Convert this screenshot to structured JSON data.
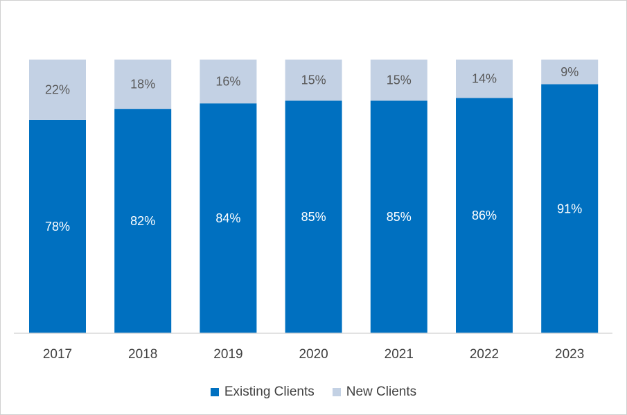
{
  "chart_data": {
    "type": "bar",
    "stacked": true,
    "percent_stacked": true,
    "categories": [
      "2017",
      "2018",
      "2019",
      "2020",
      "2021",
      "2022",
      "2023"
    ],
    "series": [
      {
        "name": "Existing Clients",
        "color": "#0070c0",
        "values": [
          78,
          82,
          84,
          85,
          85,
          86,
          91
        ],
        "labels": [
          "78%",
          "82%",
          "84%",
          "85%",
          "85%",
          "86%",
          "91%"
        ],
        "label_color": "#ffffff"
      },
      {
        "name": "New Clients",
        "color": "#c3d1e4",
        "values": [
          22,
          18,
          16,
          15,
          15,
          14,
          9
        ],
        "labels": [
          "22%",
          "18%",
          "16%",
          "15%",
          "15%",
          "14%",
          "9%"
        ],
        "label_color": "#595959"
      }
    ],
    "ylim": [
      0,
      100
    ],
    "grid": false,
    "legend_position": "bottom",
    "title": "",
    "xlabel": "",
    "ylabel": ""
  }
}
